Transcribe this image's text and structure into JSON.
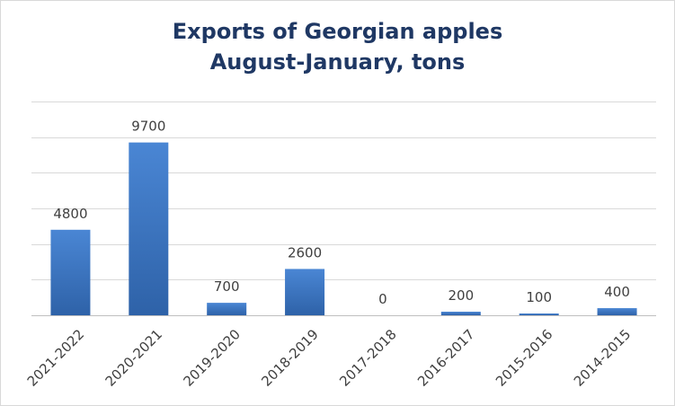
{
  "chart_data": {
    "type": "bar",
    "title": "Exports of Georgian apples",
    "subtitle": "August-January, tons",
    "categories": [
      "2021-2022",
      "2020-2021",
      "2019-2020",
      "2018-2019",
      "2017-2018",
      "2016-2017",
      "2015-2016",
      "2014-2015"
    ],
    "values": [
      4800,
      9700,
      700,
      2600,
      0,
      200,
      100,
      400
    ],
    "ylim": [
      0,
      12000
    ],
    "grid": true,
    "colors": {
      "bar_top": "#4a86d4",
      "bar_bottom": "#2e62a8",
      "title": "#1f3864"
    }
  }
}
